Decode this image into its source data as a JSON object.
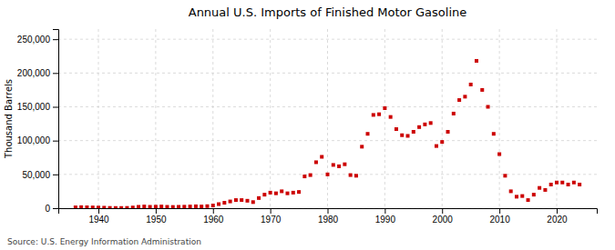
{
  "chart_data": {
    "type": "scatter",
    "title": "Annual U.S. Imports of Finished Motor Gasoline",
    "y_label": "Thousand Barrels",
    "annotations": [
      "Source: U.S. Energy Information Administration"
    ],
    "color": "#cc0000",
    "marker": "square",
    "grid": true,
    "x": [
      1936,
      1937,
      1938,
      1939,
      1940,
      1941,
      1942,
      1943,
      1944,
      1945,
      1946,
      1947,
      1948,
      1949,
      1950,
      1951,
      1952,
      1953,
      1954,
      1955,
      1956,
      1957,
      1958,
      1959,
      1960,
      1961,
      1962,
      1963,
      1964,
      1965,
      1966,
      1967,
      1968,
      1969,
      1970,
      1971,
      1972,
      1973,
      1974,
      1975,
      1976,
      1977,
      1978,
      1979,
      1980,
      1981,
      1982,
      1983,
      1984,
      1985,
      1986,
      1987,
      1988,
      1989,
      1990,
      1991,
      1992,
      1993,
      1994,
      1995,
      1996,
      1997,
      1998,
      1999,
      2000,
      2001,
      2002,
      2003,
      2004,
      2005,
      2006,
      2007,
      2008,
      2009,
      2010,
      2011,
      2012,
      2013,
      2014,
      2015,
      2016,
      2017,
      2018,
      2019,
      2020,
      2021,
      2022,
      2023,
      2024
    ],
    "values": [
      1200,
      1500,
      1300,
      1100,
      900,
      700,
      400,
      300,
      300,
      400,
      1000,
      2000,
      2500,
      2000,
      2200,
      2500,
      2000,
      1800,
      2000,
      2200,
      2500,
      2800,
      2500,
      3000,
      4000,
      6000,
      8000,
      10000,
      12000,
      12000,
      11000,
      9000,
      15000,
      20000,
      23000,
      22000,
      25000,
      22000,
      23000,
      24000,
      47000,
      49000,
      68000,
      76000,
      50000,
      64000,
      62000,
      65000,
      49000,
      48000,
      91000,
      110000,
      138000,
      139000,
      148000,
      135000,
      117000,
      108000,
      107000,
      113000,
      120000,
      124000,
      126000,
      92000,
      98000,
      113000,
      140000,
      160000,
      165000,
      183000,
      218000,
      175000,
      150000,
      110000,
      80000,
      48000,
      25000,
      17000,
      18000,
      12000,
      20000,
      30000,
      27000,
      35000,
      38000,
      38000,
      35000,
      38000,
      35000
    ],
    "xlim": [
      1933,
      2027
    ],
    "ylim": [
      0,
      265000
    ],
    "xticks": [
      1940,
      1950,
      1960,
      1970,
      1980,
      1990,
      2000,
      2010,
      2020
    ],
    "yticks": [
      0,
      {
        "value": 50000,
        "label": "50,000"
      },
      {
        "value": 100000,
        "label": "100,000"
      },
      {
        "value": 150000,
        "label": "150,000"
      },
      {
        "value": 200000,
        "label": "200,000"
      },
      {
        "value": 250000,
        "label": "250,000"
      }
    ]
  }
}
